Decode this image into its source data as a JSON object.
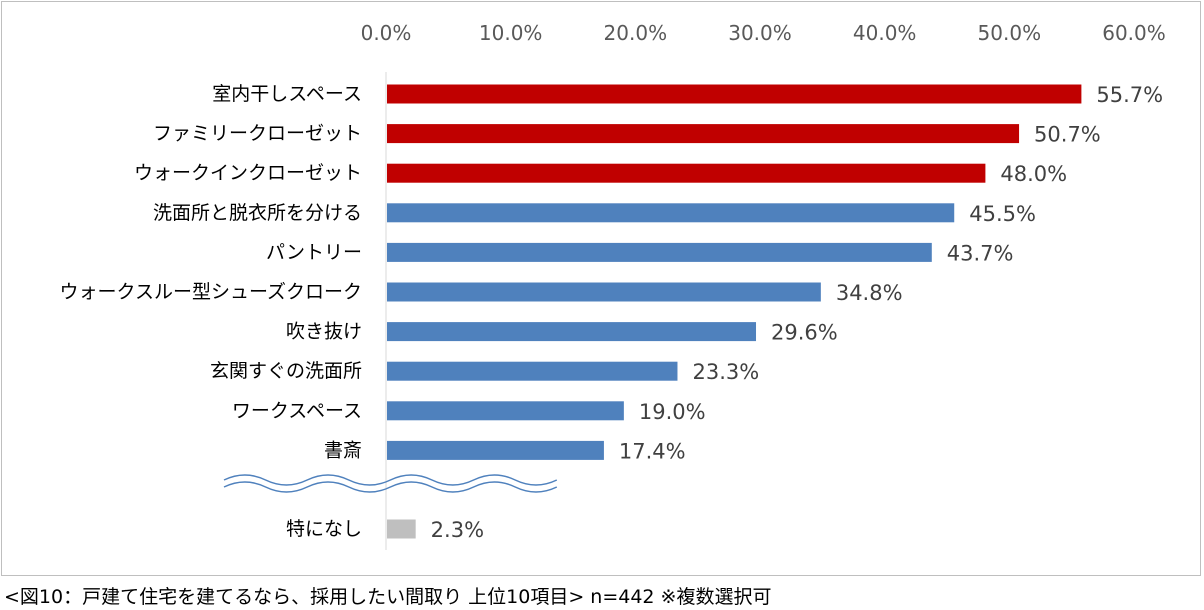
{
  "chart_data": {
    "type": "bar",
    "orientation": "horizontal",
    "x_ticks": [
      "0.0%",
      "10.0%",
      "20.0%",
      "30.0%",
      "40.0%",
      "50.0%",
      "60.0%"
    ],
    "xlim": [
      0,
      60
    ],
    "grid": false,
    "bars": [
      {
        "label": "室内干しスペース",
        "value": 55.7,
        "value_label": "55.7%",
        "color": "#c00000"
      },
      {
        "label": "ファミリークローゼット",
        "value": 50.7,
        "value_label": "50.7%",
        "color": "#c00000"
      },
      {
        "label": "ウォークインクローゼット",
        "value": 48.0,
        "value_label": "48.0%",
        "color": "#c00000"
      },
      {
        "label": "洗面所と脱衣所を分ける",
        "value": 45.5,
        "value_label": "45.5%",
        "color": "#4f81bd"
      },
      {
        "label": "パントリー",
        "value": 43.7,
        "value_label": "43.7%",
        "color": "#4f81bd"
      },
      {
        "label": "ウォークスルー型シューズクローク",
        "value": 34.8,
        "value_label": "34.8%",
        "color": "#4f81bd"
      },
      {
        "label": "吹き抜け",
        "value": 29.6,
        "value_label": "29.6%",
        "color": "#4f81bd"
      },
      {
        "label": "玄関すぐの洗面所",
        "value": 23.3,
        "value_label": "23.3%",
        "color": "#4f81bd"
      },
      {
        "label": "ワークスペース",
        "value": 19.0,
        "value_label": "19.0%",
        "color": "#4f81bd"
      },
      {
        "label": "書斎",
        "value": 17.4,
        "value_label": "17.4%",
        "color": "#4f81bd"
      },
      {
        "label": "特になし",
        "value": 2.3,
        "value_label": "2.3%",
        "color": "#bfbfbf"
      }
    ]
  },
  "caption": "<図10：戸建て住宅を建てるなら、採用したい間取り 上位10項目> n=442 ※複数選択可"
}
